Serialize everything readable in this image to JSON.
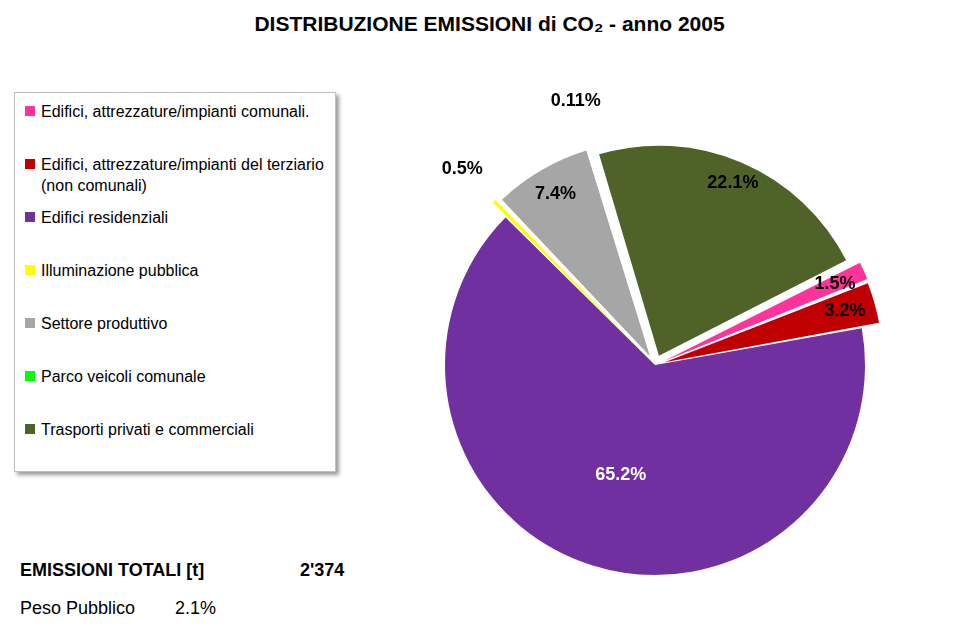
{
  "chart_data": {
    "type": "pie",
    "title": "DISTRIBUZIONE EMISSIONI di CO₂ - anno 2005",
    "categories": [
      "Edifici, attrezzature/impianti comunali.",
      "Edifici, attrezzature/impianti del terziario (non comunali)",
      "Edifici residenziali",
      "Illuminazione pubblica",
      "Settore produttivo",
      "Parco veicoli comunale",
      "Trasporti privati e commerciali"
    ],
    "values": [
      1.5,
      3.2,
      65.2,
      0.5,
      7.4,
      0.11,
      22.1
    ],
    "value_labels": [
      "1.5%",
      "3.2%",
      "65.2%",
      "0.5%",
      "7.4%",
      "0.11%",
      "22.1%"
    ],
    "colors": [
      "#ff3399",
      "#c00000",
      "#7030a0",
      "#ffff00",
      "#a6a6a6",
      "#00ff00",
      "#4f6228"
    ],
    "data_labels": true,
    "legend": "left"
  },
  "annotations": [
    {
      "text": "EMISSIONI TOTALI [t]",
      "value": "2'374"
    },
    {
      "text": "Peso Pubblico",
      "value": "2.1%"
    }
  ]
}
